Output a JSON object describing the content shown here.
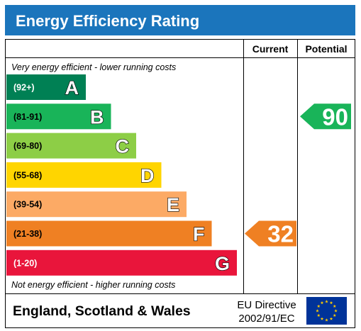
{
  "title": "Energy Efficiency Rating",
  "columns": {
    "current": "Current",
    "potential": "Potential"
  },
  "top_note": "Very energy efficient - lower running costs",
  "bottom_note": "Not energy efficient - higher running costs",
  "footer": {
    "region": "England, Scotland & Wales",
    "directive_line1": "EU Directive",
    "directive_line2": "2002/91/EC"
  },
  "colors": {
    "header": "#1b75bc",
    "A": "#008054",
    "B": "#19b459",
    "C": "#8dce46",
    "D": "#ffd500",
    "E": "#fcaa65",
    "F": "#ef8023",
    "G": "#e9153b",
    "eu_flag": "#003399",
    "eu_stars": "#ffcc00"
  },
  "chart_data": {
    "type": "bar",
    "categories": [
      "A",
      "B",
      "C",
      "D",
      "E",
      "F",
      "G"
    ],
    "ranges": [
      "(92+)",
      "(81-91)",
      "(69-80)",
      "(55-68)",
      "(39-54)",
      "(21-38)",
      "(1-20)"
    ],
    "current": {
      "value": 32,
      "band": "F"
    },
    "potential": {
      "value": 90,
      "band": "B"
    }
  }
}
